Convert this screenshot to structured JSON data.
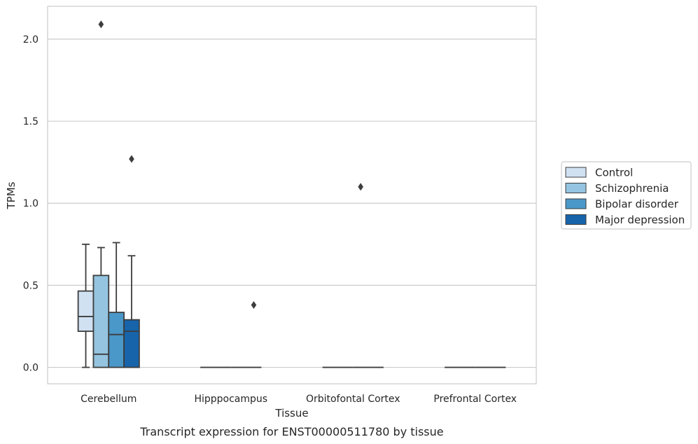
{
  "chart_data": {
    "type": "boxplot",
    "xlabel": "Tissue",
    "ylabel": "TPMs",
    "caption": "Transcript expression for ENST00000511780 by tissue",
    "ylim": [
      -0.1,
      2.2
    ],
    "yticks": [
      0.0,
      0.5,
      1.0,
      1.5,
      2.0
    ],
    "ytick_labels": [
      "0.0",
      "0.5",
      "1.0",
      "1.5",
      "2.0"
    ],
    "grid": "horizontal",
    "legend_position": "right",
    "categories": [
      "Cerebellum",
      "Hipppocampus",
      "Orbitofontal Cortex",
      "Prefrontal Cortex"
    ],
    "series": [
      {
        "name": "Control",
        "color": "#d0e1f2",
        "boxes": [
          {
            "whislo": 0.0,
            "q1": 0.22,
            "med": 0.31,
            "q3": 0.465,
            "whishi": 0.75,
            "fliers": []
          },
          {
            "whislo": 0.0,
            "q1": 0.0,
            "med": 0.0,
            "q3": 0.0,
            "whishi": 0.0,
            "fliers": []
          },
          {
            "whislo": 0.0,
            "q1": 0.0,
            "med": 0.0,
            "q3": 0.0,
            "whishi": 0.0,
            "fliers": []
          },
          {
            "whislo": 0.0,
            "q1": 0.0,
            "med": 0.0,
            "q3": 0.0,
            "whishi": 0.0,
            "fliers": []
          }
        ]
      },
      {
        "name": "Schizophrenia",
        "color": "#94c4df",
        "boxes": [
          {
            "whislo": 0.0,
            "q1": 0.0,
            "med": 0.08,
            "q3": 0.56,
            "whishi": 0.73,
            "fliers": [
              2.09
            ]
          },
          {
            "whislo": 0.0,
            "q1": 0.0,
            "med": 0.0,
            "q3": 0.0,
            "whishi": 0.0,
            "fliers": []
          },
          {
            "whislo": 0.0,
            "q1": 0.0,
            "med": 0.0,
            "q3": 0.0,
            "whishi": 0.0,
            "fliers": []
          },
          {
            "whislo": 0.0,
            "q1": 0.0,
            "med": 0.0,
            "q3": 0.0,
            "whishi": 0.0,
            "fliers": []
          }
        ]
      },
      {
        "name": "Bipolar disorder",
        "color": "#4a98c9",
        "boxes": [
          {
            "whislo": 0.0,
            "q1": 0.0,
            "med": 0.2,
            "q3": 0.335,
            "whishi": 0.76,
            "fliers": []
          },
          {
            "whislo": 0.0,
            "q1": 0.0,
            "med": 0.0,
            "q3": 0.0,
            "whishi": 0.0,
            "fliers": []
          },
          {
            "whislo": 0.0,
            "q1": 0.0,
            "med": 0.0,
            "q3": 0.0,
            "whishi": 0.0,
            "fliers": [
              1.1
            ]
          },
          {
            "whislo": 0.0,
            "q1": 0.0,
            "med": 0.0,
            "q3": 0.0,
            "whishi": 0.0,
            "fliers": []
          }
        ]
      },
      {
        "name": "Major depression",
        "color": "#1764ab",
        "boxes": [
          {
            "whislo": 0.0,
            "q1": 0.0,
            "med": 0.22,
            "q3": 0.29,
            "whishi": 0.68,
            "fliers": [
              1.27
            ]
          },
          {
            "whislo": 0.0,
            "q1": 0.0,
            "med": 0.0,
            "q3": 0.0,
            "whishi": 0.0,
            "fliers": [
              0.38
            ]
          },
          {
            "whislo": 0.0,
            "q1": 0.0,
            "med": 0.0,
            "q3": 0.0,
            "whishi": 0.0,
            "fliers": []
          },
          {
            "whislo": 0.0,
            "q1": 0.0,
            "med": 0.0,
            "q3": 0.0,
            "whishi": 0.0,
            "fliers": []
          }
        ]
      }
    ]
  }
}
